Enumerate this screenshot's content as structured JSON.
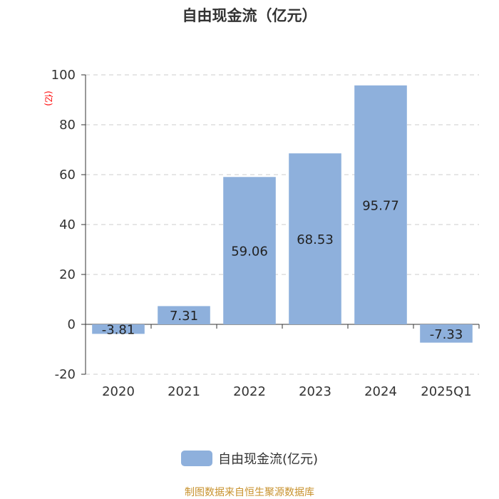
{
  "chart_data": {
    "type": "bar",
    "title": "自由现金流（亿元）",
    "ylabel": "(亿)",
    "categories": [
      "2020",
      "2021",
      "2022",
      "2023",
      "2024",
      "2025Q1"
    ],
    "series": [
      {
        "name": "自由现金流(亿元)",
        "values": [
          -3.81,
          7.31,
          59.06,
          68.53,
          95.77,
          -7.33
        ]
      }
    ],
    "value_labels": [
      "-3.81",
      "7.31",
      "59.06",
      "68.53",
      "95.77",
      "-7.33"
    ],
    "ylim": [
      -20,
      100
    ],
    "yticks": [
      "100",
      "80",
      "60",
      "40",
      "20",
      "0",
      "-20"
    ],
    "grid": true,
    "legend_position": "bottom",
    "bar_color": "#8eb0dc",
    "ylabel_color": "#ff0000"
  },
  "footer": "制图数据来自恒生聚源数据库"
}
